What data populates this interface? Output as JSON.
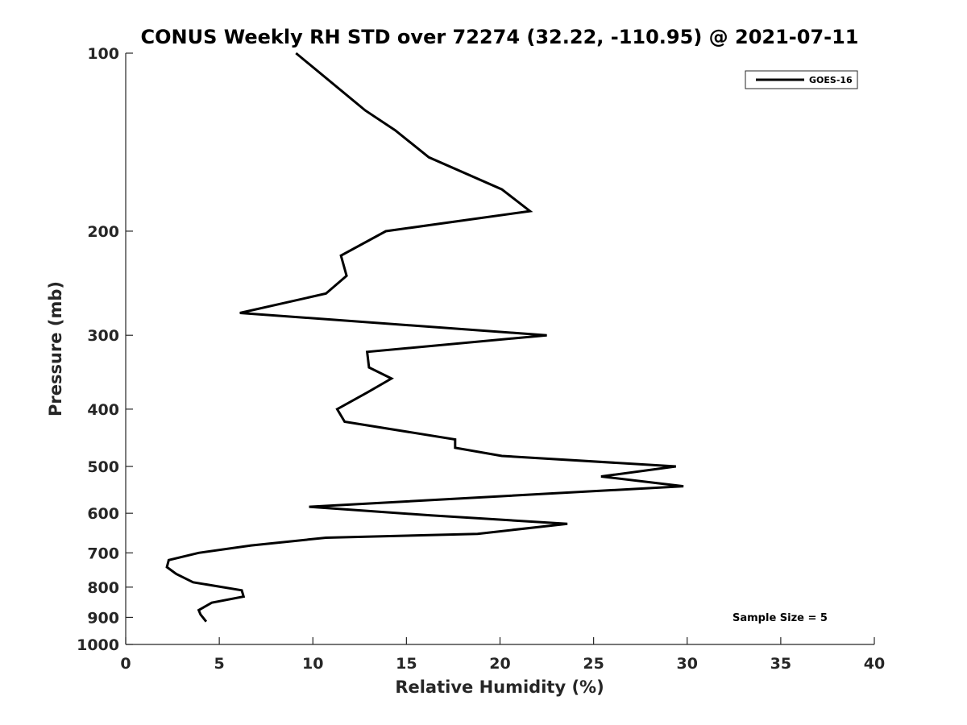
{
  "chart_data": {
    "type": "line",
    "title": "CONUS Weekly RH STD over 72274 (32.22, -110.95) @ 2021-07-11",
    "xlabel": "Relative Humidity (%)",
    "ylabel": "Pressure (mb)",
    "xlim": [
      0,
      40
    ],
    "ylim": [
      100,
      1000
    ],
    "y_scale": "log",
    "y_reversed": true,
    "grid": false,
    "legend_position": "top-right",
    "xticks": [
      0,
      5,
      10,
      15,
      20,
      25,
      30,
      35,
      40
    ],
    "xtick_labels": [
      "0",
      "5",
      "10",
      "15",
      "20",
      "25",
      "30",
      "35",
      "40"
    ],
    "yticks": [
      100,
      200,
      300,
      400,
      500,
      600,
      700,
      800,
      900,
      1000
    ],
    "ytick_labels": [
      "100",
      "200",
      "300",
      "400",
      "500",
      "600",
      "700",
      "800",
      "900",
      "1000"
    ],
    "series": [
      {
        "name": "GOES-16",
        "color": "#000000",
        "points": [
          [
            9.1,
            100
          ],
          [
            12.8,
            125
          ],
          [
            14.4,
            135
          ],
          [
            16.2,
            150
          ],
          [
            20.1,
            170
          ],
          [
            21.6,
            185
          ],
          [
            13.9,
            200
          ],
          [
            11.5,
            220
          ],
          [
            11.8,
            238
          ],
          [
            10.7,
            255
          ],
          [
            6.1,
            275
          ],
          [
            22.5,
            300
          ],
          [
            12.9,
            320
          ],
          [
            13.0,
            340
          ],
          [
            14.2,
            355
          ],
          [
            12.9,
            375
          ],
          [
            11.3,
            400
          ],
          [
            11.7,
            420
          ],
          [
            17.6,
            450
          ],
          [
            17.6,
            465
          ],
          [
            20.1,
            480
          ],
          [
            29.4,
            500
          ],
          [
            25.4,
            520
          ],
          [
            29.8,
            540
          ],
          [
            9.8,
            585
          ],
          [
            16.3,
            605
          ],
          [
            23.6,
            625
          ],
          [
            18.8,
            650
          ],
          [
            10.7,
            660
          ],
          [
            6.7,
            680
          ],
          [
            3.9,
            700
          ],
          [
            2.3,
            720
          ],
          [
            2.2,
            740
          ],
          [
            2.7,
            760
          ],
          [
            3.6,
            785
          ],
          [
            6.2,
            810
          ],
          [
            6.3,
            830
          ],
          [
            4.6,
            850
          ],
          [
            3.9,
            875
          ],
          [
            4.0,
            890
          ],
          [
            4.3,
            915
          ]
        ]
      }
    ],
    "annotations": [
      {
        "text": "Sample Size = 5",
        "position": "bottom-right"
      }
    ]
  }
}
